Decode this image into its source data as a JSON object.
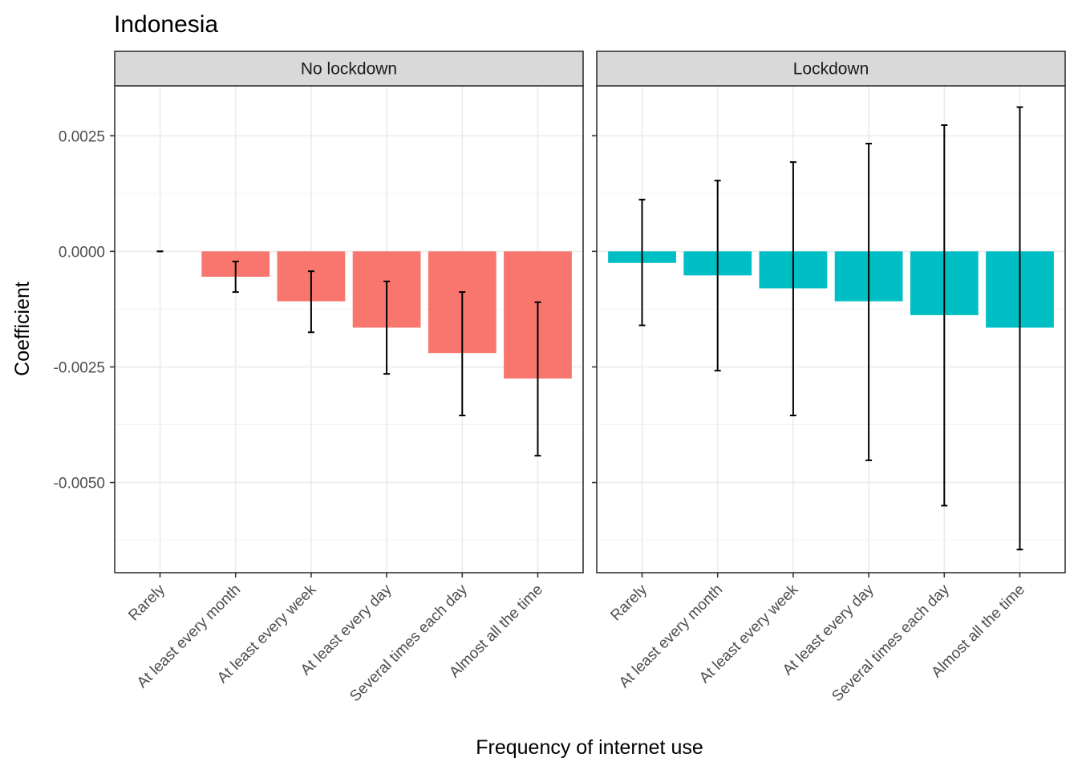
{
  "chart_data": {
    "type": "bar",
    "title": "Indonesia",
    "xlabel": "Frequency of internet use",
    "ylabel": "Coefficient",
    "ylim": [
      -0.00695,
      0.00358
    ],
    "yticks": [
      0.0025,
      0.0,
      -0.0025,
      -0.005
    ],
    "ytick_labels": [
      "0.0025",
      "0.0000",
      "-0.0025",
      "-0.0050"
    ],
    "categories": [
      "Rarely",
      "At least every month",
      "At least every week",
      "At least every day",
      "Several times each day",
      "Almost all the time"
    ],
    "grid": true,
    "legend": "none",
    "panels": [
      {
        "name": "No lockdown",
        "color": "#F8766D",
        "values": [
          0.0,
          -0.00055,
          -0.00108,
          -0.00165,
          -0.0022,
          -0.00275
        ],
        "lower": [
          0.0,
          -0.00088,
          -0.00175,
          -0.00265,
          -0.00355,
          -0.00442
        ],
        "upper": [
          0.0,
          -0.00022,
          -0.00043,
          -0.00065,
          -0.00088,
          -0.0011
        ]
      },
      {
        "name": "Lockdown",
        "color": "#00BFC4",
        "values": [
          -0.00025,
          -0.00052,
          -0.0008,
          -0.00108,
          -0.00138,
          -0.00165
        ],
        "lower": [
          -0.0016,
          -0.00258,
          -0.00355,
          -0.00452,
          -0.0055,
          -0.00645
        ],
        "upper": [
          0.00112,
          0.00153,
          0.00193,
          0.00233,
          0.00273,
          0.00312
        ]
      }
    ]
  }
}
